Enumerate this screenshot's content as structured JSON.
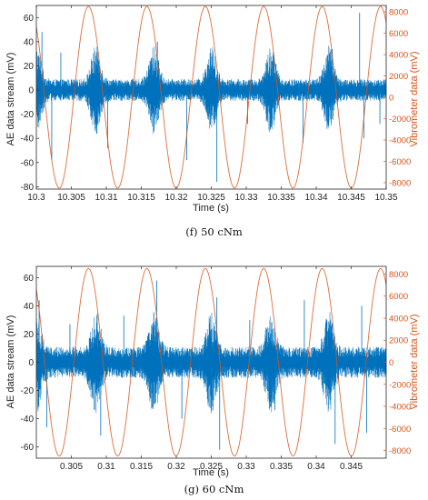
{
  "panels": [
    {
      "caption": "(f) 50 cNm"
    },
    {
      "caption": "(g) 60 cNm"
    }
  ],
  "chart_data": [
    {
      "type": "line",
      "xlabel": "Time (s)",
      "ylabel_left": "AE data stream (mV)",
      "ylabel_right": "Vibrometer data (mV)",
      "xlim": [
        10.3,
        10.35
      ],
      "ylim_left": [
        -82,
        70
      ],
      "ylim_right": [
        -8600,
        8600
      ],
      "x_ticks": [
        10.3,
        10.305,
        10.31,
        10.315,
        10.32,
        10.325,
        10.33,
        10.335,
        10.34,
        10.345,
        10.35
      ],
      "x_tick_labels": [
        "10.3",
        "10.305",
        "10.31",
        "10.315",
        "10.32",
        "10.325",
        "10.33",
        "10.335",
        "10.34",
        "10.345",
        "10.35"
      ],
      "y_left_ticks": [
        -80,
        -60,
        -40,
        -20,
        0,
        20,
        40,
        60
      ],
      "y_right_ticks": [
        -8000,
        -6000,
        -4000,
        -2000,
        0,
        2000,
        4000,
        6000,
        8000
      ],
      "grid": false,
      "series": [
        {
          "axis": "left",
          "color": "#0072BD",
          "noise_amplitude": 9,
          "burst_centers": [
            10.3,
            10.3085,
            10.3168,
            10.325,
            10.3335,
            10.3418
          ],
          "burst_amplitude": 28,
          "spikes": [
            [
              10.3008,
              48
            ],
            [
              10.3022,
              -58
            ],
            [
              10.3035,
              31
            ],
            [
              10.3102,
              -48
            ],
            [
              10.3173,
              40
            ],
            [
              10.3215,
              -58
            ],
            [
              10.3252,
              33
            ],
            [
              10.3258,
              -76
            ],
            [
              10.3302,
              -28
            ],
            [
              10.3338,
              29
            ],
            [
              10.3381,
              -44
            ],
            [
              10.3423,
              34
            ],
            [
              10.3462,
              64
            ],
            [
              10.3468,
              -40
            ],
            [
              10.3491,
              -28
            ]
          ]
        },
        {
          "axis": "right",
          "color": "#D95319",
          "sinusoid": {
            "amplitude": 8500,
            "period": 0.00835,
            "peak_at": 10.30745
          }
        }
      ]
    },
    {
      "type": "line",
      "xlabel": "Time (s)",
      "ylabel_left": "AE data stream (mV)",
      "ylabel_right": "Vibrometer data (mV)",
      "xlim": [
        10.3,
        10.35
      ],
      "ylim_left": [
        -68,
        68
      ],
      "ylim_right": [
        -8700,
        8700
      ],
      "x_ticks": [
        10.305,
        10.31,
        10.315,
        10.32,
        10.325,
        10.33,
        10.335,
        10.34,
        10.345
      ],
      "x_tick_labels": [
        "0.305",
        "0.31",
        "0.315",
        "0.32",
        "0.325",
        "0.33",
        "0.335",
        "0.34",
        "0.345"
      ],
      "y_left_ticks": [
        -60,
        -40,
        -20,
        0,
        20,
        40,
        60
      ],
      "y_right_ticks": [
        -8000,
        -6000,
        -4000,
        -2000,
        0,
        2000,
        4000,
        6000,
        8000
      ],
      "grid": false,
      "series": [
        {
          "axis": "left",
          "color": "#0072BD",
          "noise_amplitude": 11,
          "burst_centers": [
            10.3,
            10.3085,
            10.3168,
            10.325,
            10.3335,
            10.3418
          ],
          "burst_amplitude": 26,
          "spikes": [
            [
              10.3004,
              44
            ],
            [
              10.3015,
              -46
            ],
            [
              10.3048,
              27
            ],
            [
              10.3092,
              -52
            ],
            [
              10.3125,
              33
            ],
            [
              10.3172,
              58
            ],
            [
              10.3208,
              -40
            ],
            [
              10.3258,
              46
            ],
            [
              10.3262,
              -62
            ],
            [
              10.3305,
              30
            ],
            [
              10.3341,
              -34
            ],
            [
              10.3383,
              44
            ],
            [
              10.3427,
              -58
            ],
            [
              10.3465,
              40
            ],
            [
              10.3472,
              -50
            ]
          ]
        },
        {
          "axis": "right",
          "color": "#D95319",
          "sinusoid": {
            "amplitude": 8500,
            "period": 0.00835,
            "peak_at": 10.30745
          }
        }
      ]
    }
  ]
}
